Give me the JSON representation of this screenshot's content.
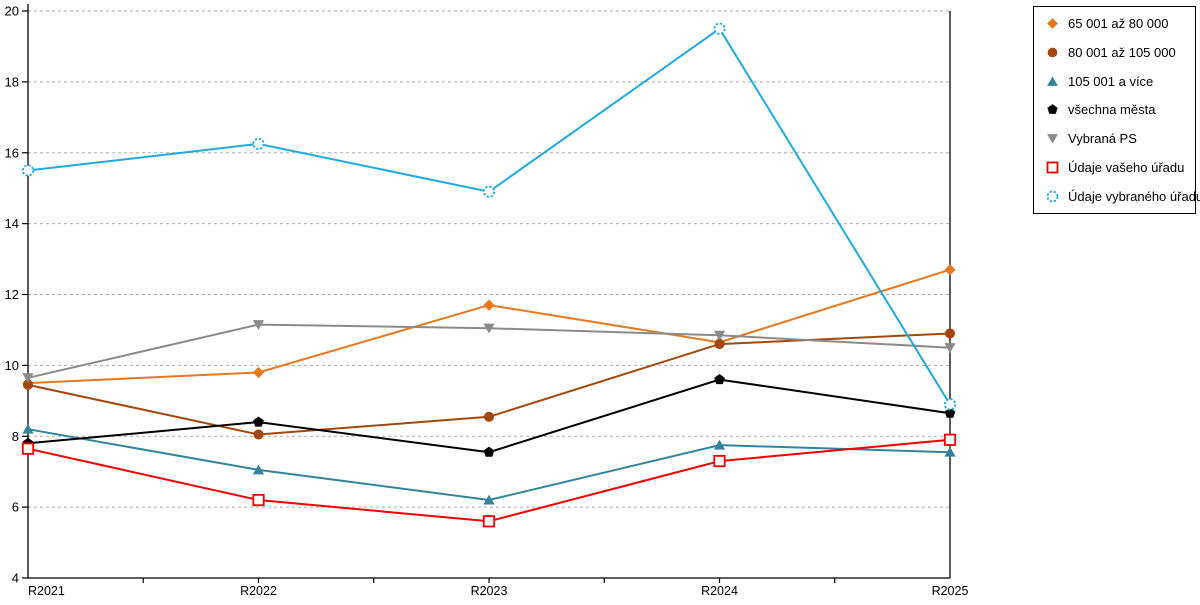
{
  "chart_data": {
    "type": "line",
    "title": "",
    "xlabel": "",
    "ylabel": "",
    "x_categories": [
      "R2021",
      "R2022",
      "R2023",
      "R2024",
      "R2025"
    ],
    "ylim": [
      4,
      20
    ],
    "y_ticks": [
      4,
      6,
      8,
      10,
      12,
      14,
      16,
      18,
      20
    ],
    "grid": "horizontal-dashed",
    "gridline_color": "#ababab",
    "axis_color": "#000000",
    "legend_position": "outside-top-right",
    "series": [
      {
        "name": "65 001 až 80 000",
        "color": "#e8771e",
        "marker": "diamond",
        "values": [
          9.5,
          9.8,
          11.7,
          10.65,
          12.7
        ]
      },
      {
        "name": "80 001 až 105 000",
        "color": "#a3470e",
        "marker": "circle",
        "values": [
          9.45,
          8.05,
          8.55,
          10.6,
          10.9
        ]
      },
      {
        "name": "105 001 a více",
        "color": "#31849b",
        "marker": "triangle-up",
        "values": [
          8.2,
          7.05,
          6.2,
          7.75,
          7.55
        ]
      },
      {
        "name": "všechna města",
        "color": "#000000",
        "marker": "pentagon",
        "values": [
          7.8,
          8.4,
          7.55,
          9.6,
          8.65
        ]
      },
      {
        "name": "Vybraná PS",
        "color": "#8a8a8a",
        "marker": "triangle-down",
        "values": [
          9.65,
          11.15,
          11.05,
          10.85,
          10.5
        ]
      },
      {
        "name": "Údaje vašeho úřadu",
        "color": "#f40000",
        "marker": "square-open",
        "values": [
          7.65,
          6.2,
          5.6,
          7.3,
          7.9
        ]
      },
      {
        "name": "Údaje vybraného úřadu",
        "color": "#1fa9e3",
        "marker": "circle-open-dashed",
        "values": [
          15.5,
          16.25,
          14.9,
          19.5,
          8.9
        ]
      }
    ]
  }
}
